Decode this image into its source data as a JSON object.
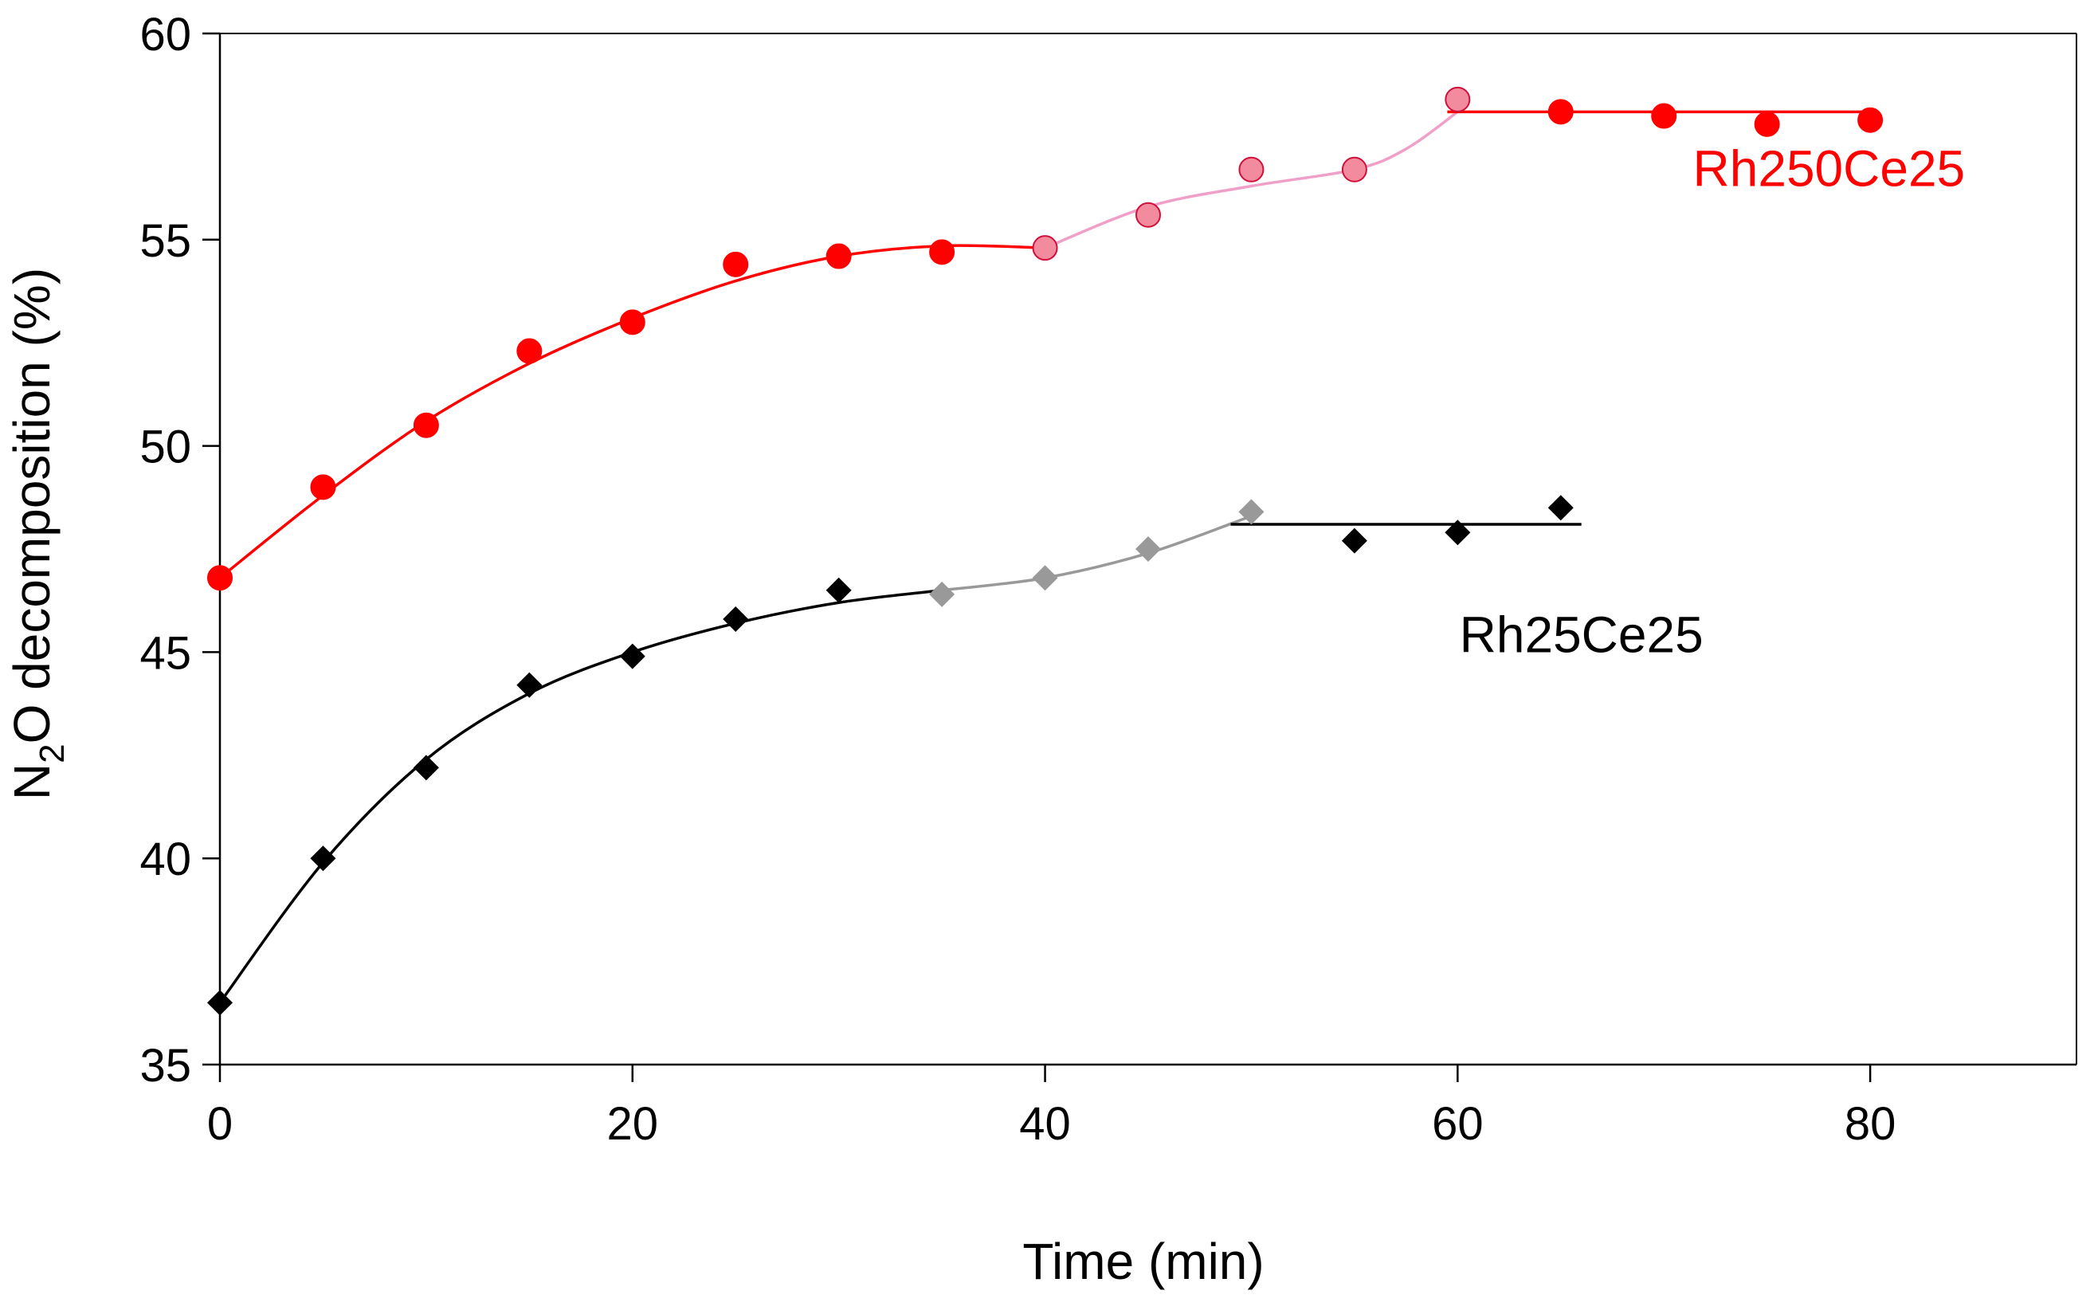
{
  "chart_data": {
    "type": "scatter",
    "title": "",
    "xlabel": "Time (min)",
    "ylabel": {
      "prefix": "N",
      "subscript": "2",
      "suffix": "O decomposition (%)"
    },
    "xlim": [
      0,
      90
    ],
    "ylim": [
      35,
      60
    ],
    "xticks": [
      0,
      20,
      40,
      60,
      80
    ],
    "yticks": [
      35,
      40,
      45,
      50,
      55,
      60
    ],
    "grid": false,
    "legend": "none",
    "series": [
      {
        "name": "Rh250Ce25",
        "color": "#ff0000",
        "marker": "circle",
        "label_position": [
          78,
          56.3
        ],
        "points": [
          {
            "x": 0,
            "y": 46.8,
            "color": "#ff0000"
          },
          {
            "x": 5,
            "y": 49.0,
            "color": "#ff0000"
          },
          {
            "x": 10,
            "y": 50.5,
            "color": "#ff0000"
          },
          {
            "x": 15,
            "y": 52.3,
            "color": "#ff0000"
          },
          {
            "x": 20,
            "y": 53.0,
            "color": "#ff0000"
          },
          {
            "x": 25,
            "y": 54.4,
            "color": "#ff0000"
          },
          {
            "x": 30,
            "y": 54.6,
            "color": "#ff0000"
          },
          {
            "x": 35,
            "y": 54.7,
            "color": "#ff0000"
          },
          {
            "x": 40,
            "y": 54.8,
            "color": "#f28b9e"
          },
          {
            "x": 45,
            "y": 55.6,
            "color": "#f28b9e"
          },
          {
            "x": 50,
            "y": 56.7,
            "color": "#f28b9e"
          },
          {
            "x": 55,
            "y": 56.7,
            "color": "#f28b9e"
          },
          {
            "x": 60,
            "y": 58.4,
            "color": "#f28b9e"
          },
          {
            "x": 65,
            "y": 58.1,
            "color": "#ff0000"
          },
          {
            "x": 70,
            "y": 58.0,
            "color": "#ff0000"
          },
          {
            "x": 75,
            "y": 57.8,
            "color": "#ff0000"
          },
          {
            "x": 80,
            "y": 57.9,
            "color": "#ff0000"
          }
        ],
        "fit_segments": [
          {
            "color": "#ff0000",
            "points": [
              [
                0,
                46.8
              ],
              [
                5,
                48.8
              ],
              [
                10,
                50.6
              ],
              [
                15,
                52.0
              ],
              [
                20,
                53.1
              ],
              [
                25,
                54.0
              ],
              [
                30,
                54.6
              ],
              [
                35,
                54.85
              ],
              [
                40,
                54.8
              ]
            ]
          },
          {
            "color": "#f0a0c8",
            "points": [
              [
                40,
                54.8
              ],
              [
                45,
                55.8
              ],
              [
                50,
                56.3
              ],
              [
                55,
                56.7
              ],
              [
                57.5,
                57.2
              ],
              [
                60,
                58.1
              ]
            ]
          },
          {
            "color": "#ff0000",
            "points": [
              [
                59.5,
                58.1
              ],
              [
                80,
                58.1
              ]
            ]
          }
        ]
      },
      {
        "name": "Rh25Ce25",
        "color": "#000000",
        "marker": "diamond",
        "label_position": [
          66,
          45.0
        ],
        "points": [
          {
            "x": 0,
            "y": 36.5,
            "color": "#000000"
          },
          {
            "x": 5,
            "y": 40.0,
            "color": "#000000"
          },
          {
            "x": 10,
            "y": 42.2,
            "color": "#000000"
          },
          {
            "x": 15,
            "y": 44.2,
            "color": "#000000"
          },
          {
            "x": 20,
            "y": 44.9,
            "color": "#000000"
          },
          {
            "x": 25,
            "y": 45.8,
            "color": "#000000"
          },
          {
            "x": 30,
            "y": 46.5,
            "color": "#000000"
          },
          {
            "x": 35,
            "y": 46.4,
            "color": "#999999"
          },
          {
            "x": 40,
            "y": 46.8,
            "color": "#999999"
          },
          {
            "x": 45,
            "y": 47.5,
            "color": "#999999"
          },
          {
            "x": 50,
            "y": 48.4,
            "color": "#999999"
          },
          {
            "x": 55,
            "y": 47.7,
            "color": "#000000"
          },
          {
            "x": 60,
            "y": 47.9,
            "color": "#000000"
          },
          {
            "x": 65,
            "y": 48.5,
            "color": "#000000"
          }
        ],
        "fit_segments": [
          {
            "color": "#000000",
            "points": [
              [
                0,
                36.5
              ],
              [
                5,
                39.9
              ],
              [
                10,
                42.4
              ],
              [
                15,
                44.0
              ],
              [
                20,
                45.0
              ],
              [
                25,
                45.7
              ],
              [
                30,
                46.2
              ],
              [
                35,
                46.5
              ]
            ]
          },
          {
            "color": "#999999",
            "points": [
              [
                35,
                46.5
              ],
              [
                40,
                46.8
              ],
              [
                45,
                47.4
              ],
              [
                50,
                48.3
              ]
            ]
          },
          {
            "color": "#000000",
            "points": [
              [
                49,
                48.1
              ],
              [
                66,
                48.1
              ]
            ]
          }
        ]
      }
    ]
  }
}
